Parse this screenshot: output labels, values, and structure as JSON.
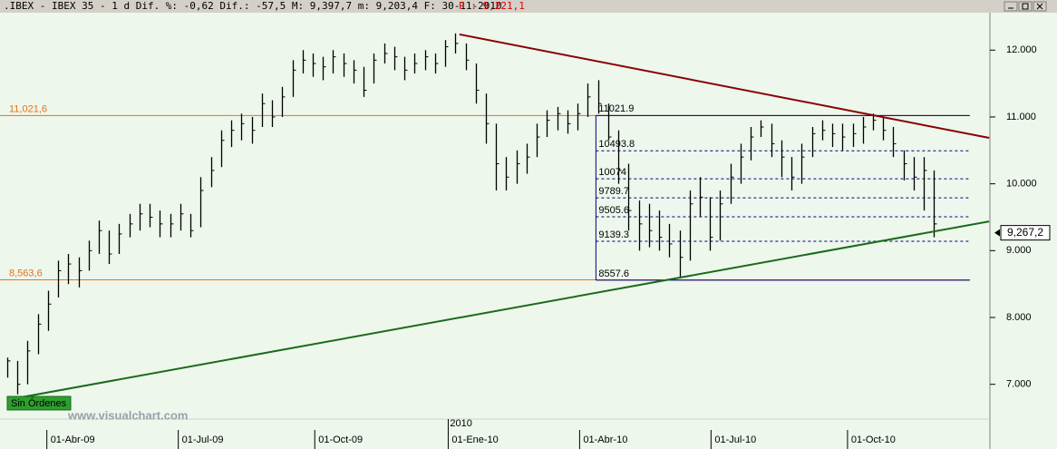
{
  "header": {
    "left": ".IBEX - IBEX 35 -  1 d Dif. %: -0,62 Dif.: -57,5 M: 9,397,7 m: 9,203,4 F: 30-11-2010",
    "price": "P : 9,221,1"
  },
  "chart_data": {
    "type": "ohlc",
    "x": [
      0,
      1,
      2,
      3,
      4,
      5,
      6,
      7,
      8,
      9,
      10,
      11,
      12,
      13,
      14,
      15,
      16,
      17,
      18,
      19,
      20,
      21,
      22,
      23,
      24,
      25,
      26,
      27,
      28,
      29,
      30,
      31,
      32,
      33,
      34,
      35,
      36,
      37,
      38,
      39,
      40,
      41,
      42,
      43,
      44,
      45,
      46,
      47,
      48,
      49,
      50,
      51,
      52,
      53,
      54,
      55,
      56,
      57,
      58,
      59,
      60,
      61,
      62,
      63,
      64,
      65,
      66,
      67,
      68,
      69,
      70,
      71,
      72,
      73,
      74,
      75,
      76,
      77,
      78,
      79,
      80,
      81,
      82,
      83,
      84,
      85,
      86,
      87,
      88,
      89,
      90,
      91
    ],
    "high": [
      7400,
      7350,
      7650,
      8050,
      8400,
      8850,
      8950,
      8900,
      9150,
      9450,
      9300,
      9400,
      9550,
      9700,
      9700,
      9600,
      9550,
      9700,
      9550,
      10100,
      10400,
      10800,
      10950,
      11050,
      11000,
      11350,
      11250,
      11450,
      11850,
      12000,
      11950,
      11900,
      12000,
      11950,
      11850,
      11750,
      11950,
      12100,
      12050,
      11900,
      11950,
      12000,
      11950,
      12150,
      12250,
      12100,
      11800,
      11350,
      10900,
      10400,
      10500,
      10600,
      10900,
      11100,
      11150,
      11100,
      11200,
      11500,
      11550,
      11200,
      10800,
      10300,
      9750,
      9700,
      9600,
      9400,
      9300,
      9900,
      10100,
      9800,
      9900,
      10300,
      10600,
      10850,
      10950,
      10900,
      10650,
      10400,
      10600,
      10850,
      10950,
      10900,
      10900,
      10900,
      11000,
      11050,
      11000,
      10850,
      10500,
      10400,
      10400,
      10200
    ],
    "low": [
      7100,
      6850,
      7000,
      7450,
      7800,
      8300,
      8500,
      8450,
      8700,
      8950,
      8800,
      8950,
      9200,
      9300,
      9350,
      9200,
      9200,
      9300,
      9200,
      9350,
      9950,
      10250,
      10550,
      10650,
      10600,
      10850,
      10850,
      11000,
      11300,
      11650,
      11600,
      11550,
      11650,
      11600,
      11500,
      11300,
      11500,
      11800,
      11700,
      11550,
      11650,
      11700,
      11650,
      11750,
      11950,
      11700,
      11200,
      10600,
      9900,
      9900,
      10000,
      10150,
      10400,
      10700,
      10800,
      10750,
      10800,
      11000,
      11050,
      10650,
      10000,
      9300,
      9000,
      9050,
      9000,
      8900,
      8600,
      8850,
      9500,
      9000,
      9150,
      9700,
      10000,
      10350,
      10700,
      10400,
      10100,
      9900,
      10000,
      10400,
      10650,
      10550,
      10500,
      10550,
      10600,
      10800,
      10650,
      10400,
      10050,
      9900,
      9600,
      9200
    ],
    "close": [
      7350,
      7000,
      7500,
      7900,
      8200,
      8700,
      8800,
      8700,
      9000,
      9300,
      8950,
      9250,
      9400,
      9550,
      9500,
      9400,
      9400,
      9550,
      9300,
      9900,
      10200,
      10650,
      10800,
      10900,
      10800,
      11200,
      11000,
      11300,
      11700,
      11850,
      11800,
      11750,
      11900,
      11800,
      11700,
      11400,
      11850,
      11950,
      11900,
      11700,
      11800,
      11900,
      11800,
      12050,
      12100,
      11850,
      11400,
      10900,
      10300,
      10100,
      10300,
      10400,
      10700,
      10950,
      11050,
      10900,
      11050,
      11300,
      11200,
      10700,
      10200,
      9600,
      9400,
      9300,
      9200,
      9100,
      8900,
      9700,
      9800,
      9200,
      9700,
      10100,
      10400,
      10700,
      10850,
      10600,
      10400,
      10100,
      10400,
      10750,
      10800,
      10750,
      10700,
      10750,
      10850,
      10950,
      10800,
      10600,
      10300,
      10100,
      10200,
      9400
    ],
    "color": "#000000",
    "xlim": [
      -0.7,
      96.3
    ],
    "xticks": [
      {
        "value": 3.9,
        "label": "01-Abr-09"
      },
      {
        "value": 16.8,
        "label": "01-Jul-09"
      },
      {
        "value": 30.2,
        "label": "01-Oct-09"
      },
      {
        "value": 43.3,
        "label": "01-Ene-10"
      },
      {
        "value": 56.2,
        "label": "01-Abr-10"
      },
      {
        "value": 69.1,
        "label": "01-Jul-10"
      },
      {
        "value": 82.5,
        "label": "01-Oct-10"
      }
    ],
    "year_label": {
      "value": 43.3,
      "label": "2010"
    },
    "ylim": [
      6480,
      12560
    ],
    "yticks": [
      {
        "value": 7000,
        "label": "7.000"
      },
      {
        "value": 8000,
        "label": "8.000"
      },
      {
        "value": 9000,
        "label": "9.000"
      },
      {
        "value": 10000,
        "label": "10.000"
      },
      {
        "value": 11000,
        "label": "11.000"
      },
      {
        "value": 12000,
        "label": "12.000"
      }
    ],
    "hlines": [
      {
        "value": 11021.6,
        "label": "11,021,6",
        "color": "#e8701a"
      },
      {
        "value": 8563.6,
        "label": "8,563,6",
        "color": "#e8701a"
      }
    ],
    "fib": {
      "x": [
        57.8,
        94.5
      ],
      "levels": [
        11021.9,
        10493.8,
        10074,
        9789.7,
        9505.6,
        9139.3,
        8557.6
      ],
      "color": "#000080"
    },
    "trendlines": [
      {
        "color": "#8b0000",
        "x": [
          44.4,
          96.4
        ],
        "y": [
          12236,
          10687
        ]
      },
      {
        "color": "#1a6b1a",
        "x": [
          0.2,
          96.4
        ],
        "y": [
          6774,
          9437
        ]
      }
    ],
    "last": {
      "value": 9267.2,
      "label": "9,267,2"
    },
    "status": "Sin Órdenes",
    "watermark": "www.visualchart.com"
  }
}
